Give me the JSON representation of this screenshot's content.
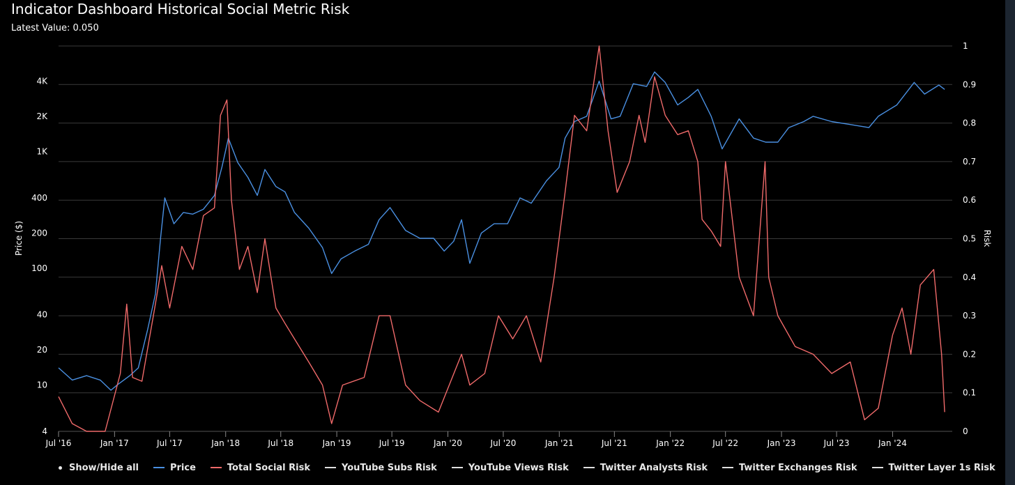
{
  "header": {
    "title": "Indicator Dashboard Historical Social Metric Risk",
    "latest_value": "Latest Value: 0.050"
  },
  "legend": {
    "show_hide_label": "Show/Hide all",
    "items": [
      {
        "label": "Price",
        "color": "#4a90e2"
      },
      {
        "label": "Total Social Risk",
        "color": "#f06a6a"
      },
      {
        "label": "YouTube Subs Risk",
        "color": "#e0e0e0"
      },
      {
        "label": "YouTube Views Risk",
        "color": "#e0e0e0"
      },
      {
        "label": "Twitter Analysts Risk",
        "color": "#e0e0e0"
      },
      {
        "label": "Twitter Exchanges Risk",
        "color": "#e0e0e0"
      },
      {
        "label": "Twitter Layer 1s Risk",
        "color": "#e0e0e0"
      }
    ]
  },
  "chart_data": {
    "type": "line",
    "title": "Indicator Dashboard Historical Social Metric Risk",
    "y_left": {
      "label": "Price ($)",
      "scale": "log",
      "range": [
        4,
        8000
      ],
      "ticks": [
        4,
        10,
        20,
        40,
        100,
        200,
        400,
        1000,
        2000,
        4000
      ],
      "tick_labels": [
        "4",
        "10",
        "20",
        "40",
        "100",
        "200",
        "400",
        "1K",
        "2K",
        "4K"
      ]
    },
    "y_right": {
      "label": "Risk",
      "range": [
        0,
        1
      ],
      "ticks": [
        0,
        0.1,
        0.2,
        0.3,
        0.4,
        0.5,
        0.6,
        0.7,
        0.8,
        0.9,
        1
      ],
      "tick_labels": [
        "0",
        "0.1",
        "0.2",
        "0.3",
        "0.4",
        "0.5",
        "0.6",
        "0.7",
        "0.8",
        "0.9",
        "1"
      ]
    },
    "x": {
      "type": "date",
      "range": [
        "2016-07-01",
        "2024-07-15"
      ],
      "ticks": [
        "2016-07-01",
        "2017-01-01",
        "2017-07-01",
        "2018-01-01",
        "2018-07-01",
        "2019-01-01",
        "2019-07-01",
        "2020-01-01",
        "2020-07-01",
        "2021-01-01",
        "2021-07-01",
        "2022-01-01",
        "2022-07-01",
        "2023-01-01",
        "2023-07-01",
        "2024-01-01"
      ],
      "tick_labels": [
        "Jul '16",
        "Jan '17",
        "Jul '17",
        "Jan '18",
        "Jul '18",
        "Jan '19",
        "Jul '19",
        "Jan '20",
        "Jul '20",
        "Jan '21",
        "Jul '21",
        "Jan '22",
        "Jul '22",
        "Jan '23",
        "Jul '23",
        "Jan '24"
      ]
    },
    "grid": true,
    "legend_position": "bottom",
    "series": [
      {
        "name": "Price",
        "axis": "left",
        "color": "#4a90e2",
        "points": [
          [
            "2016-07-01",
            14
          ],
          [
            "2016-08-15",
            11
          ],
          [
            "2016-10-01",
            12
          ],
          [
            "2016-11-15",
            11
          ],
          [
            "2016-12-20",
            9
          ],
          [
            "2017-01-10",
            10
          ],
          [
            "2017-02-20",
            12
          ],
          [
            "2017-03-20",
            14
          ],
          [
            "2017-04-20",
            30
          ],
          [
            "2017-05-15",
            60
          ],
          [
            "2017-06-01",
            180
          ],
          [
            "2017-06-15",
            400
          ],
          [
            "2017-07-15",
            240
          ],
          [
            "2017-08-15",
            300
          ],
          [
            "2017-09-15",
            290
          ],
          [
            "2017-10-20",
            320
          ],
          [
            "2017-11-25",
            420
          ],
          [
            "2017-12-20",
            740
          ],
          [
            "2018-01-10",
            1300
          ],
          [
            "2018-02-10",
            800
          ],
          [
            "2018-03-15",
            600
          ],
          [
            "2018-04-15",
            420
          ],
          [
            "2018-05-10",
            700
          ],
          [
            "2018-06-15",
            500
          ],
          [
            "2018-07-15",
            450
          ],
          [
            "2018-08-15",
            300
          ],
          [
            "2018-10-01",
            220
          ],
          [
            "2018-11-15",
            150
          ],
          [
            "2018-12-15",
            90
          ],
          [
            "2019-01-15",
            120
          ],
          [
            "2019-03-01",
            140
          ],
          [
            "2019-04-15",
            160
          ],
          [
            "2019-05-20",
            260
          ],
          [
            "2019-06-25",
            330
          ],
          [
            "2019-08-15",
            210
          ],
          [
            "2019-10-01",
            180
          ],
          [
            "2019-11-15",
            180
          ],
          [
            "2019-12-20",
            140
          ],
          [
            "2020-01-20",
            170
          ],
          [
            "2020-02-15",
            260
          ],
          [
            "2020-03-13",
            110
          ],
          [
            "2020-04-20",
            200
          ],
          [
            "2020-06-01",
            240
          ],
          [
            "2020-07-15",
            240
          ],
          [
            "2020-08-25",
            400
          ],
          [
            "2020-10-01",
            360
          ],
          [
            "2020-11-20",
            560
          ],
          [
            "2020-12-31",
            730
          ],
          [
            "2021-01-20",
            1300
          ],
          [
            "2021-02-20",
            1800
          ],
          [
            "2021-04-01",
            2000
          ],
          [
            "2021-05-12",
            4000
          ],
          [
            "2021-06-20",
            1900
          ],
          [
            "2021-07-20",
            2000
          ],
          [
            "2021-09-01",
            3800
          ],
          [
            "2021-10-15",
            3600
          ],
          [
            "2021-11-10",
            4800
          ],
          [
            "2021-12-15",
            3900
          ],
          [
            "2022-01-25",
            2500
          ],
          [
            "2022-03-01",
            2900
          ],
          [
            "2022-04-01",
            3400
          ],
          [
            "2022-05-15",
            2000
          ],
          [
            "2022-06-20",
            1050
          ],
          [
            "2022-08-15",
            1900
          ],
          [
            "2022-10-01",
            1300
          ],
          [
            "2022-11-10",
            1200
          ],
          [
            "2022-12-20",
            1200
          ],
          [
            "2023-01-25",
            1600
          ],
          [
            "2023-03-15",
            1800
          ],
          [
            "2023-04-15",
            2000
          ],
          [
            "2023-06-15",
            1800
          ],
          [
            "2023-08-15",
            1700
          ],
          [
            "2023-10-15",
            1600
          ],
          [
            "2023-11-15",
            2000
          ],
          [
            "2024-01-15",
            2500
          ],
          [
            "2024-03-12",
            3900
          ],
          [
            "2024-04-15",
            3100
          ],
          [
            "2024-06-01",
            3700
          ],
          [
            "2024-06-20",
            3400
          ]
        ]
      },
      {
        "name": "Total Social Risk",
        "axis": "right",
        "color": "#f06a6a",
        "points": [
          [
            "2016-07-01",
            0.09
          ],
          [
            "2016-08-15",
            0.02
          ],
          [
            "2016-10-01",
            0.0
          ],
          [
            "2016-12-01",
            0.0
          ],
          [
            "2017-01-20",
            0.15
          ],
          [
            "2017-02-10",
            0.33
          ],
          [
            "2017-03-01",
            0.14
          ],
          [
            "2017-04-01",
            0.13
          ],
          [
            "2017-05-15",
            0.33
          ],
          [
            "2017-06-05",
            0.43
          ],
          [
            "2017-07-01",
            0.32
          ],
          [
            "2017-08-10",
            0.48
          ],
          [
            "2017-09-15",
            0.42
          ],
          [
            "2017-10-20",
            0.56
          ],
          [
            "2017-11-25",
            0.58
          ],
          [
            "2017-12-15",
            0.82
          ],
          [
            "2018-01-05",
            0.86
          ],
          [
            "2018-01-20",
            0.6
          ],
          [
            "2018-02-15",
            0.42
          ],
          [
            "2018-03-15",
            0.48
          ],
          [
            "2018-04-15",
            0.36
          ],
          [
            "2018-05-10",
            0.5
          ],
          [
            "2018-06-15",
            0.32
          ],
          [
            "2018-07-15",
            0.28
          ],
          [
            "2018-08-15",
            0.24
          ],
          [
            "2018-10-01",
            0.18
          ],
          [
            "2018-11-15",
            0.12
          ],
          [
            "2018-12-15",
            0.02
          ],
          [
            "2019-01-20",
            0.12
          ],
          [
            "2019-04-01",
            0.14
          ],
          [
            "2019-05-20",
            0.3
          ],
          [
            "2019-06-25",
            0.3
          ],
          [
            "2019-08-15",
            0.12
          ],
          [
            "2019-10-01",
            0.08
          ],
          [
            "2019-12-01",
            0.05
          ],
          [
            "2020-02-15",
            0.2
          ],
          [
            "2020-03-13",
            0.12
          ],
          [
            "2020-05-01",
            0.15
          ],
          [
            "2020-06-15",
            0.3
          ],
          [
            "2020-08-01",
            0.24
          ],
          [
            "2020-09-15",
            0.3
          ],
          [
            "2020-11-01",
            0.18
          ],
          [
            "2020-12-15",
            0.4
          ],
          [
            "2021-01-20",
            0.62
          ],
          [
            "2021-02-20",
            0.82
          ],
          [
            "2021-04-01",
            0.78
          ],
          [
            "2021-05-12",
            1.0
          ],
          [
            "2021-06-10",
            0.78
          ],
          [
            "2021-07-10",
            0.62
          ],
          [
            "2021-08-20",
            0.7
          ],
          [
            "2021-09-20",
            0.82
          ],
          [
            "2021-10-10",
            0.75
          ],
          [
            "2021-11-10",
            0.92
          ],
          [
            "2021-12-15",
            0.82
          ],
          [
            "2022-01-25",
            0.77
          ],
          [
            "2022-03-01",
            0.78
          ],
          [
            "2022-04-01",
            0.7
          ],
          [
            "2022-04-15",
            0.55
          ],
          [
            "2022-05-15",
            0.52
          ],
          [
            "2022-06-15",
            0.48
          ],
          [
            "2022-07-01",
            0.7
          ],
          [
            "2022-08-15",
            0.4
          ],
          [
            "2022-10-01",
            0.3
          ],
          [
            "2022-11-08",
            0.7
          ],
          [
            "2022-11-20",
            0.4
          ],
          [
            "2022-12-20",
            0.3
          ],
          [
            "2023-02-15",
            0.22
          ],
          [
            "2023-04-15",
            0.2
          ],
          [
            "2023-06-15",
            0.15
          ],
          [
            "2023-08-15",
            0.18
          ],
          [
            "2023-10-01",
            0.03
          ],
          [
            "2023-11-15",
            0.06
          ],
          [
            "2024-01-01",
            0.25
          ],
          [
            "2024-02-01",
            0.32
          ],
          [
            "2024-03-01",
            0.2
          ],
          [
            "2024-04-01",
            0.38
          ],
          [
            "2024-05-15",
            0.42
          ],
          [
            "2024-06-10",
            0.2
          ],
          [
            "2024-06-20",
            0.05
          ]
        ]
      },
      {
        "name": "YouTube Subs Risk",
        "axis": "right",
        "color": "#e0e0e0",
        "points": [],
        "visible": false
      },
      {
        "name": "YouTube Views Risk",
        "axis": "right",
        "color": "#e0e0e0",
        "points": [],
        "visible": false
      },
      {
        "name": "Twitter Analysts Risk",
        "axis": "right",
        "color": "#e0e0e0",
        "points": [],
        "visible": false
      },
      {
        "name": "Twitter Exchanges Risk",
        "axis": "right",
        "color": "#e0e0e0",
        "points": [],
        "visible": false
      },
      {
        "name": "Twitter Layer 1s Risk",
        "axis": "right",
        "color": "#e0e0e0",
        "points": [],
        "visible": false
      }
    ]
  }
}
